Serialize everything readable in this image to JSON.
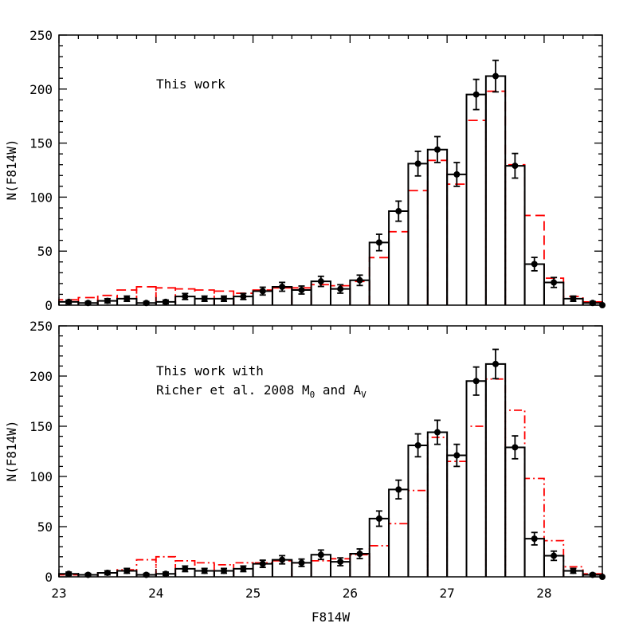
{
  "chart_data": [
    {
      "type": "bar",
      "panel": "top",
      "xlabel": "",
      "ylabel": "N(F814W)",
      "xlim": [
        23.0,
        28.6
      ],
      "ylim": [
        0,
        250
      ],
      "bin_width": 0.2,
      "xticks": [],
      "yticks": [
        "0",
        "50",
        "100",
        "150",
        "200",
        "250"
      ],
      "annotations": [
        "This work"
      ],
      "series": [
        {
          "style": "step-solid-with-errorbars",
          "color": "#000000",
          "x": [
            23.0,
            23.2,
            23.4,
            23.6,
            23.8,
            24.0,
            24.2,
            24.4,
            24.6,
            24.8,
            25.0,
            25.2,
            25.4,
            25.6,
            25.8,
            26.0,
            26.2,
            26.4,
            26.6,
            26.8,
            27.0,
            27.2,
            27.4,
            27.6,
            27.8,
            28.0,
            28.2,
            28.4,
            28.6
          ],
          "values": [
            3,
            2,
            4,
            6,
            2,
            3,
            8,
            6,
            6,
            8,
            13,
            17,
            14,
            22,
            15,
            23,
            58,
            87,
            131,
            144,
            121,
            195,
            212,
            129,
            38,
            21,
            6,
            2,
            0
          ],
          "errors": [
            1.7,
            1.4,
            2.0,
            2.4,
            1.4,
            1.7,
            2.8,
            2.4,
            2.4,
            2.8,
            3.6,
            4.1,
            3.7,
            4.7,
            3.9,
            4.8,
            7.6,
            9.3,
            11.4,
            12.0,
            11.0,
            14.0,
            14.6,
            11.4,
            6.2,
            4.6,
            2.4,
            1.4,
            0
          ]
        },
        {
          "style": "step-dashed",
          "color": "#ff0000",
          "x": [
            23.0,
            23.2,
            23.4,
            23.6,
            23.8,
            24.0,
            24.2,
            24.4,
            24.6,
            24.8,
            25.0,
            25.2,
            25.4,
            25.6,
            25.8,
            26.0,
            26.2,
            26.4,
            26.6,
            26.8,
            27.0,
            27.2,
            27.4,
            27.6,
            27.8,
            28.0,
            28.2,
            28.4
          ],
          "values": [
            5,
            7,
            9,
            14,
            17,
            16,
            15,
            14,
            13,
            11,
            14,
            16,
            16,
            19,
            18,
            22,
            44,
            68,
            106,
            134,
            112,
            171,
            198,
            130,
            83,
            25,
            8,
            3
          ]
        }
      ]
    },
    {
      "type": "bar",
      "panel": "bottom",
      "xlabel": "F814W",
      "ylabel": "N(F814W)",
      "xlim": [
        23.0,
        28.6
      ],
      "ylim": [
        0,
        250
      ],
      "bin_width": 0.2,
      "xticks": [
        "23",
        "24",
        "25",
        "26",
        "27",
        "28"
      ],
      "yticks": [
        "0",
        "50",
        "100",
        "150",
        "200",
        "250"
      ],
      "annotations": [
        "This work with",
        "Richer et al. 2008 M",
        "0",
        " and A",
        "V"
      ],
      "series": [
        {
          "style": "step-solid-with-errorbars",
          "color": "#000000",
          "x": [
            23.0,
            23.2,
            23.4,
            23.6,
            23.8,
            24.0,
            24.2,
            24.4,
            24.6,
            24.8,
            25.0,
            25.2,
            25.4,
            25.6,
            25.8,
            26.0,
            26.2,
            26.4,
            26.6,
            26.8,
            27.0,
            27.2,
            27.4,
            27.6,
            27.8,
            28.0,
            28.2,
            28.4,
            28.6
          ],
          "values": [
            3,
            2,
            4,
            6,
            2,
            3,
            8,
            6,
            6,
            8,
            13,
            17,
            14,
            22,
            15,
            23,
            58,
            87,
            131,
            144,
            121,
            195,
            212,
            129,
            38,
            21,
            6,
            2,
            0
          ],
          "errors": [
            1.7,
            1.4,
            2.0,
            2.4,
            1.4,
            1.7,
            2.8,
            2.4,
            2.4,
            2.8,
            3.6,
            4.1,
            3.7,
            4.7,
            3.9,
            4.8,
            7.6,
            9.3,
            11.4,
            12.0,
            11.0,
            14.0,
            14.6,
            11.4,
            6.2,
            4.6,
            2.4,
            1.4,
            0
          ]
        },
        {
          "style": "step-dashdot",
          "color": "#ff0000",
          "x": [
            23.0,
            23.2,
            23.4,
            23.6,
            23.8,
            24.0,
            24.2,
            24.4,
            24.6,
            24.8,
            25.0,
            25.2,
            25.4,
            25.6,
            25.8,
            26.0,
            26.2,
            26.4,
            26.6,
            26.8,
            27.0,
            27.2,
            27.4,
            27.6,
            27.8,
            28.0,
            28.2,
            28.4
          ],
          "values": [
            2,
            2,
            4,
            7,
            17,
            20,
            16,
            14,
            12,
            14,
            14,
            16,
            14,
            16,
            18,
            22,
            31,
            53,
            86,
            139,
            115,
            150,
            197,
            166,
            98,
            36,
            10,
            3
          ]
        }
      ]
    }
  ]
}
